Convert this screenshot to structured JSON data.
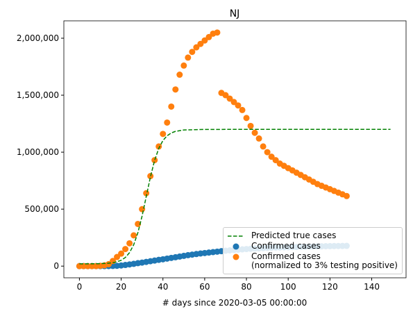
{
  "chart_data": {
    "type": "scatter",
    "title": "NJ",
    "x_label": "# days since 2020-03-05 00:00:00",
    "xlim": [
      -7.45,
      156.45
    ],
    "ylim": [
      -102500,
      2152500
    ],
    "xticks": [
      0,
      20,
      40,
      60,
      80,
      100,
      120,
      140
    ],
    "yticks": [
      0,
      {
        "value": 500000,
        "label": "500,000"
      },
      {
        "value": 1000000,
        "label": "1,000,000"
      },
      {
        "value": 1500000,
        "label": "1,500,000"
      },
      {
        "value": 2000000,
        "label": "2,000,000"
      }
    ],
    "legend": "lower right",
    "series": [
      {
        "name": "Predicted true cases",
        "type": "line",
        "color": "#008000",
        "dashed": true,
        "x": [
          0,
          5,
          10,
          14,
          17,
          20,
          22,
          24,
          26,
          28,
          30,
          32,
          34,
          36,
          38,
          40,
          42,
          44,
          46,
          50,
          60,
          80,
          100,
          120,
          149
        ],
        "values": [
          20100,
          20400,
          21600,
          25300,
          33000,
          51000,
          75900,
          118200,
          187400,
          293100,
          438100,
          610000,
          781900,
          926900,
          1032900,
          1101800,
          1144000,
          1168600,
          1182500,
          1194700,
          1199700,
          1200000,
          1200000,
          1200000,
          1200000
        ]
      },
      {
        "name": "Confirmed cases",
        "type": "scatter",
        "color": "#1f77b4",
        "x": [
          0,
          2,
          4,
          6,
          8,
          10,
          12,
          14,
          16,
          18,
          20,
          22,
          24,
          26,
          28,
          30,
          32,
          34,
          36,
          38,
          40,
          42,
          44,
          46,
          48,
          50,
          52,
          54,
          56,
          58,
          60,
          62,
          64,
          66,
          68,
          70,
          72,
          74,
          76,
          78,
          80,
          82,
          84,
          86,
          88,
          90,
          92,
          94,
          96,
          98,
          100,
          102,
          104,
          106,
          108,
          110,
          112,
          114,
          116,
          118,
          120,
          122,
          124,
          126,
          128
        ],
        "values": [
          0,
          0,
          0,
          0,
          0,
          100,
          200,
          500,
          1500,
          3000,
          6000,
          10000,
          15000,
          20000,
          26000,
          31000,
          37000,
          43000,
          49000,
          55000,
          60000,
          66000,
          72000,
          78000,
          84000,
          90000,
          96000,
          101000,
          106000,
          111000,
          115000,
          119000,
          123000,
          127000,
          131000,
          135000,
          138000,
          141000,
          144000,
          147000,
          150000,
          152000,
          154000,
          156000,
          158000,
          160000,
          162000,
          163000,
          164000,
          165000,
          166000,
          167000,
          168000,
          169000,
          170000,
          171000,
          172000,
          173000,
          174000,
          175000,
          175500,
          176000,
          176500,
          177000,
          177500
        ]
      },
      {
        "name": "Confirmed cases\n(normalized to 3% testing positive)",
        "type": "scatter",
        "color": "#ff7f0e",
        "x": [
          0,
          2,
          4,
          6,
          8,
          10,
          12,
          14,
          16,
          18,
          20,
          22,
          24,
          26,
          28,
          30,
          32,
          34,
          36,
          38,
          40,
          42,
          44,
          46,
          48,
          50,
          52,
          54,
          56,
          58,
          60,
          62,
          64,
          66,
          68,
          70,
          72,
          74,
          76,
          78,
          80,
          82,
          84,
          86,
          88,
          90,
          92,
          94,
          96,
          98,
          100,
          102,
          104,
          106,
          108,
          110,
          112,
          114,
          116,
          118,
          120,
          122,
          124,
          126,
          128
        ],
        "values": [
          0,
          0,
          0,
          0,
          0,
          3000,
          7000,
          17000,
          45000,
          80000,
          110000,
          150000,
          200000,
          270000,
          370000,
          500000,
          640000,
          790000,
          930000,
          1050000,
          1160000,
          1260000,
          1400000,
          1550000,
          1680000,
          1760000,
          1830000,
          1880000,
          1920000,
          1950000,
          1980000,
          2010000,
          2040000,
          2050000,
          1520000,
          1500000,
          1470000,
          1440000,
          1410000,
          1370000,
          1300000,
          1230000,
          1170000,
          1120000,
          1050000,
          1000000,
          960000,
          930000,
          900000,
          880000,
          860000,
          840000,
          820000,
          800000,
          780000,
          760000,
          740000,
          720000,
          705000,
          690000,
          675000,
          660000,
          645000,
          630000,
          615000
        ]
      }
    ]
  }
}
